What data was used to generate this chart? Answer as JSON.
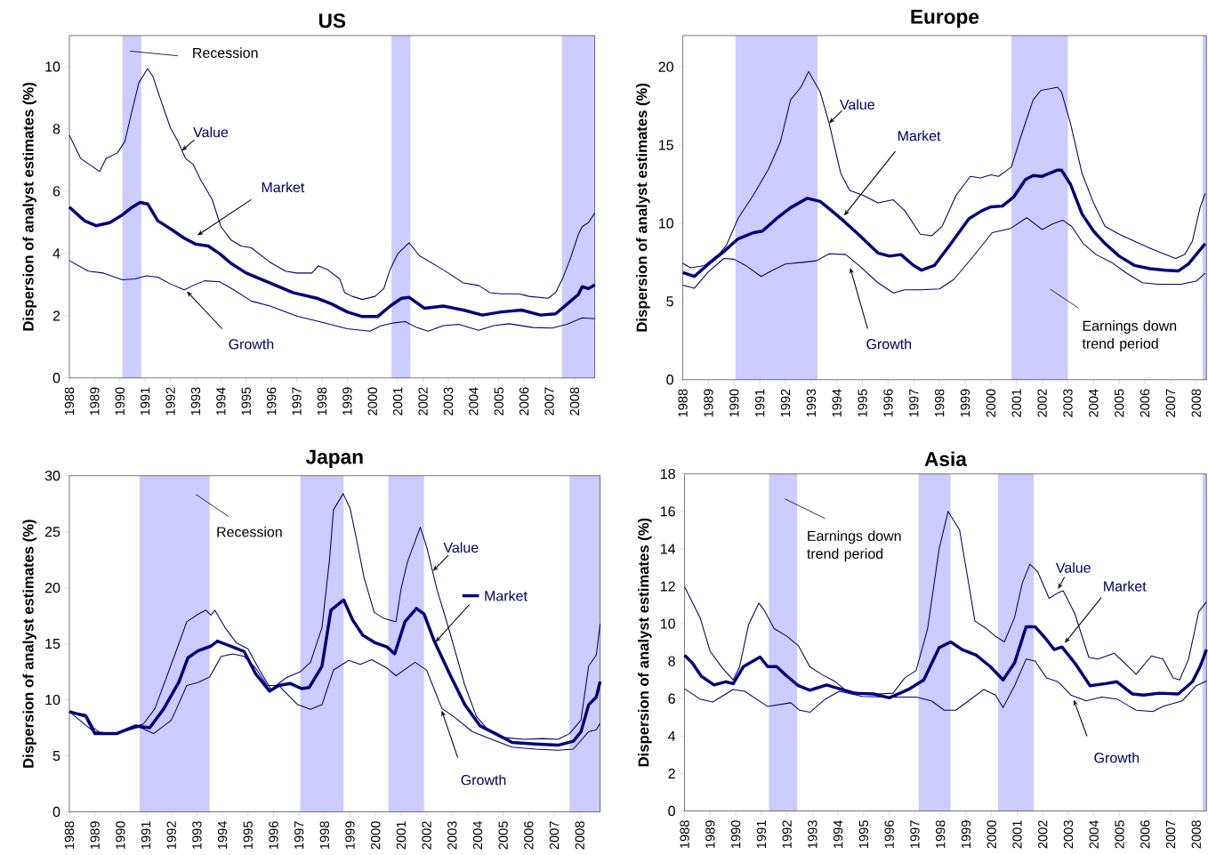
{
  "chart_data": [
    {
      "type": "line",
      "title": "US",
      "ylabel": "Dispersion of analyst estimates (%)",
      "xlim": [
        1988,
        2008.8
      ],
      "ylim": [
        0,
        11
      ],
      "xticks": [
        1988,
        1989,
        1990,
        1991,
        1992,
        1993,
        1994,
        1995,
        1996,
        1997,
        1998,
        1999,
        2000,
        2001,
        2002,
        2003,
        2004,
        2005,
        2006,
        2007,
        2008
      ],
      "yticks": [
        0,
        2,
        4,
        6,
        8,
        10
      ],
      "bands": [
        {
          "axis": "x",
          "from": 1990.1,
          "to": 1990.85,
          "label": "Recession",
          "color": "#ccccff"
        },
        {
          "axis": "x",
          "from": 2000.75,
          "to": 2001.5,
          "color": "#ccccff"
        },
        {
          "axis": "x",
          "from": 2007.5,
          "to": 2008.8,
          "color": "#ccccff"
        }
      ],
      "series": [
        {
          "name": "Value",
          "color": "#000080",
          "x": [
            1988,
            1988.45,
            1989.2,
            1989.45,
            1989.9,
            1990.2,
            1990.45,
            1990.75,
            1991.1,
            1991.3,
            1991.65,
            1992.0,
            1992.3,
            1992.6,
            1992.9,
            1993.2,
            1993.65,
            1994.0,
            1994.4,
            1994.8,
            1995.2,
            1995.9,
            1996.55,
            1997.0,
            1997.6,
            1997.85,
            1998.2,
            1998.7,
            1998.9,
            1999.2,
            1999.6,
            2000.1,
            2000.45,
            2000.7,
            2001.0,
            2001.45,
            2001.85,
            2002.5,
            2003.0,
            2003.6,
            2004.2,
            2004.65,
            2005.1,
            2005.8,
            2006.2,
            2006.95,
            2007.25,
            2007.55,
            2007.85,
            2008.15,
            2008.3,
            2008.55,
            2008.8
          ],
          "values": [
            7.8,
            7.05,
            6.63,
            7.05,
            7.23,
            7.6,
            8.48,
            9.48,
            9.94,
            9.7,
            8.85,
            8.04,
            7.6,
            7.05,
            6.86,
            6.36,
            5.74,
            4.86,
            4.43,
            4.24,
            4.18,
            3.74,
            3.43,
            3.37,
            3.37,
            3.6,
            3.49,
            3.18,
            2.74,
            2.62,
            2.52,
            2.62,
            2.87,
            3.49,
            3.99,
            4.34,
            3.93,
            3.62,
            3.37,
            3.05,
            2.97,
            2.74,
            2.7,
            2.7,
            2.62,
            2.56,
            2.74,
            3.24,
            3.87,
            4.61,
            4.86,
            4.99,
            5.3
          ]
        },
        {
          "name": "Market",
          "color": "#000080",
          "x": [
            1988,
            1988.6,
            1989.05,
            1989.6,
            1990.1,
            1990.5,
            1990.8,
            1991.1,
            1991.5,
            1992.1,
            1992.55,
            1993.0,
            1993.5,
            1993.95,
            1994.4,
            1995.0,
            1995.95,
            1996.85,
            1997.8,
            1998.4,
            1999.0,
            1999.6,
            2000.2,
            2000.7,
            2001.15,
            2001.45,
            2002.05,
            2002.8,
            2003.6,
            2004.35,
            2005.1,
            2005.9,
            2006.65,
            2007.25,
            2007.7,
            2008.15,
            2008.3,
            2008.55,
            2008.8
          ],
          "values": [
            5.49,
            5.05,
            4.89,
            4.99,
            5.24,
            5.49,
            5.64,
            5.59,
            5.05,
            4.74,
            4.49,
            4.3,
            4.24,
            3.99,
            3.68,
            3.37,
            3.05,
            2.74,
            2.56,
            2.37,
            2.12,
            1.97,
            1.97,
            2.31,
            2.56,
            2.59,
            2.24,
            2.31,
            2.18,
            2.02,
            2.12,
            2.18,
            2.02,
            2.06,
            2.37,
            2.68,
            2.93,
            2.87,
            2.99
          ]
        },
        {
          "name": "Growth",
          "color": "#000080",
          "x": [
            1988,
            1988.75,
            1989.35,
            1990.1,
            1990.6,
            1991.05,
            1991.5,
            1992.0,
            1992.55,
            1992.9,
            1993.35,
            1993.95,
            1994.55,
            1995.2,
            1995.95,
            1997.0,
            1997.9,
            1999.0,
            1999.9,
            2000.35,
            2000.85,
            2001.3,
            2001.75,
            2002.2,
            2002.8,
            2003.4,
            2004.2,
            2004.8,
            2005.4,
            2006.35,
            2007.1,
            2007.7,
            2008.3,
            2008.8
          ],
          "values": [
            3.77,
            3.43,
            3.37,
            3.15,
            3.18,
            3.28,
            3.24,
            3.02,
            2.83,
            2.97,
            3.12,
            3.09,
            2.81,
            2.47,
            2.31,
            1.99,
            1.81,
            1.58,
            1.5,
            1.68,
            1.77,
            1.81,
            1.62,
            1.5,
            1.68,
            1.72,
            1.53,
            1.68,
            1.74,
            1.62,
            1.6,
            1.72,
            1.93,
            1.9
          ]
        }
      ]
    },
    {
      "type": "line",
      "title": "Europe",
      "ylabel": "Dispersion of analyst estimates (%)",
      "xlim": [
        1988,
        2008.4
      ],
      "ylim": [
        0,
        22
      ],
      "xticks": [
        1988,
        1989,
        1990,
        1991,
        1992,
        1993,
        1994,
        1995,
        1996,
        1997,
        1998,
        1999,
        2000,
        2001,
        2002,
        2003,
        2004,
        2005,
        2006,
        2007,
        2008
      ],
      "yticks": [
        0,
        5,
        10,
        15,
        20
      ],
      "bands": [
        {
          "axis": "x",
          "from": 1990.05,
          "to": 1993.25,
          "color": "#ccccff"
        },
        {
          "axis": "x",
          "from": 2000.8,
          "to": 2003.0,
          "label": "Earnings down trend period",
          "color": "#ccccff"
        },
        {
          "axis": "x",
          "from": 2008.25,
          "to": 2008.4,
          "color": "#ccccff"
        }
      ],
      "series": [
        {
          "name": "Value",
          "color": "#000080",
          "x": [
            1988,
            1988.3,
            1988.85,
            1989.45,
            1989.7,
            1990.15,
            1990.75,
            1991.35,
            1991.8,
            1992.2,
            1992.6,
            1992.9,
            1993.35,
            1993.7,
            1994.15,
            1994.5,
            1995.0,
            1995.6,
            1996.2,
            1996.65,
            1997.25,
            1997.7,
            1998.1,
            1998.65,
            1999.2,
            1999.6,
            2000.0,
            2000.3,
            2000.8,
            2001.2,
            2001.65,
            2001.95,
            2002.3,
            2002.6,
            2002.75,
            2003.1,
            2003.55,
            2004.0,
            2004.45,
            2005.0,
            2005.6,
            2006.2,
            2006.8,
            2007.2,
            2007.55,
            2007.85,
            2008.15,
            2008.35
          ],
          "values": [
            7.44,
            7.15,
            7.3,
            8.1,
            8.6,
            10.3,
            11.8,
            13.5,
            15.2,
            17.9,
            18.7,
            19.7,
            18.4,
            16.4,
            13.2,
            12.1,
            11.8,
            11.3,
            11.5,
            10.8,
            9.3,
            9.2,
            9.8,
            11.8,
            13.0,
            12.9,
            13.1,
            13.0,
            13.6,
            15.7,
            17.9,
            18.5,
            18.6,
            18.7,
            18.4,
            16.4,
            13.2,
            11.3,
            9.8,
            9.3,
            8.85,
            8.4,
            8.0,
            7.75,
            8.0,
            8.85,
            11.0,
            11.9
          ]
        },
        {
          "name": "Market",
          "color": "#000080",
          "x": [
            1988,
            1988.45,
            1989.0,
            1989.6,
            1990.15,
            1990.75,
            1991.1,
            1991.65,
            1992.2,
            1992.85,
            1993.35,
            1993.8,
            1994.3,
            1994.9,
            1995.6,
            1996.05,
            1996.5,
            1996.95,
            1997.3,
            1997.8,
            1998.4,
            1999.15,
            1999.65,
            2000.0,
            2000.45,
            2000.9,
            2001.35,
            2001.65,
            2002.0,
            2002.6,
            2002.75,
            2003.1,
            2003.55,
            2004.0,
            2004.45,
            2005.0,
            2005.6,
            2006.2,
            2006.8,
            2007.3,
            2007.7,
            2008.05,
            2008.35
          ],
          "values": [
            6.85,
            6.6,
            7.4,
            8.2,
            9.0,
            9.4,
            9.5,
            10.3,
            11.0,
            11.6,
            11.4,
            10.8,
            10.1,
            9.2,
            8.1,
            7.9,
            8.0,
            7.35,
            7.0,
            7.3,
            8.6,
            10.3,
            10.8,
            11.05,
            11.1,
            11.7,
            12.8,
            13.05,
            13.0,
            13.4,
            13.4,
            12.5,
            10.6,
            9.5,
            8.7,
            7.9,
            7.3,
            7.1,
            7.0,
            6.95,
            7.4,
            8.1,
            8.7
          ]
        },
        {
          "name": "Growth",
          "color": "#000080",
          "x": [
            1988,
            1988.45,
            1989.0,
            1989.6,
            1990.0,
            1990.45,
            1991.05,
            1991.5,
            1992.0,
            1992.65,
            1993.2,
            1993.7,
            1994.35,
            1994.9,
            1995.6,
            1996.2,
            1996.65,
            1997.25,
            1998.0,
            1998.55,
            1999.3,
            2000.05,
            2000.75,
            2001.4,
            2002.0,
            2002.4,
            2002.8,
            2003.15,
            2003.6,
            2004.1,
            2004.7,
            2005.3,
            2005.9,
            2006.5,
            2007.4,
            2008.0,
            2008.35
          ],
          "values": [
            6.05,
            5.85,
            6.9,
            7.75,
            7.7,
            7.3,
            6.6,
            7.0,
            7.4,
            7.5,
            7.6,
            8.05,
            8.0,
            7.25,
            6.2,
            5.55,
            5.75,
            5.75,
            5.8,
            6.4,
            7.85,
            9.4,
            9.65,
            10.35,
            9.6,
            9.95,
            10.2,
            9.8,
            8.7,
            8.0,
            7.5,
            6.8,
            6.2,
            6.1,
            6.1,
            6.3,
            6.8
          ]
        }
      ]
    },
    {
      "type": "line",
      "title": "Japan",
      "ylabel": "Dispersion of analyst estimates (%)",
      "xlim": [
        1988,
        2008.8
      ],
      "ylim": [
        0,
        30
      ],
      "xticks": [
        1988,
        1989,
        1990,
        1991,
        1992,
        1993,
        1994,
        1995,
        1996,
        1997,
        1998,
        1999,
        2000,
        2001,
        2002,
        2003,
        2004,
        2005,
        2006,
        2007,
        2008
      ],
      "yticks": [
        0,
        5,
        10,
        15,
        20,
        25,
        30
      ],
      "bands": [
        {
          "axis": "x",
          "from": 1990.75,
          "to": 1993.5,
          "label": "Recession",
          "color": "#ccccff"
        },
        {
          "axis": "x",
          "from": 1997.05,
          "to": 1998.75,
          "color": "#ccccff"
        },
        {
          "axis": "x",
          "from": 2000.5,
          "to": 2001.9,
          "color": "#ccccff"
        },
        {
          "axis": "x",
          "from": 2007.6,
          "to": 2008.8,
          "color": "#ccccff"
        }
      ],
      "series": [
        {
          "name": "Value",
          "color": "#000080",
          "x": [
            1988,
            1988.65,
            1988.95,
            1989.25,
            1989.85,
            1990.45,
            1990.9,
            1991.35,
            1991.8,
            1992.3,
            1992.6,
            1993.05,
            1993.35,
            1993.55,
            1993.7,
            1994.1,
            1994.55,
            1995.0,
            1995.45,
            1995.9,
            1996.5,
            1997.05,
            1997.45,
            1997.9,
            1998.2,
            1998.35,
            1998.73,
            1999.0,
            1999.25,
            1999.55,
            1999.95,
            2000.3,
            2000.8,
            2001.0,
            2001.25,
            2001.75,
            2002.0,
            2002.4,
            2002.9,
            2003.5,
            2003.95,
            2004.4,
            2005.0,
            2005.8,
            2006.55,
            2007.15,
            2007.6,
            2008.05,
            2008.35,
            2008.65,
            2008.8
          ],
          "values": [
            8.94,
            8.7,
            7.5,
            6.98,
            6.98,
            7.5,
            7.84,
            9.2,
            11.97,
            15.07,
            16.96,
            17.65,
            18.0,
            17.55,
            18.0,
            16.45,
            15.07,
            14.55,
            12.66,
            10.94,
            11.97,
            12.5,
            13.35,
            16.45,
            22.6,
            26.95,
            28.4,
            27.1,
            24.36,
            20.9,
            17.8,
            17.3,
            16.96,
            19.9,
            22.3,
            25.4,
            23.67,
            19.9,
            16.1,
            11.28,
            8.53,
            7.33,
            6.64,
            6.47,
            6.54,
            6.47,
            6.98,
            8.19,
            13.0,
            14.0,
            16.8
          ]
        },
        {
          "name": "Market",
          "color": "#000080",
          "x": [
            1988,
            1988.65,
            1989.0,
            1989.85,
            1990.6,
            1991.15,
            1991.7,
            1992.3,
            1992.65,
            1993.05,
            1993.55,
            1993.8,
            1994.4,
            1994.85,
            1995.3,
            1995.85,
            1996.2,
            1996.65,
            1997.1,
            1997.4,
            1997.9,
            1998.25,
            1998.75,
            1999.1,
            1999.5,
            2000.0,
            2000.45,
            2000.75,
            2001.15,
            2001.6,
            2001.9,
            2002.3,
            2002.9,
            2003.5,
            2004.1,
            2004.7,
            2005.35,
            2006.25,
            2007.15,
            2007.75,
            2008.05,
            2008.35,
            2008.65,
            2008.8
          ],
          "values": [
            8.94,
            8.53,
            6.98,
            6.98,
            7.67,
            7.5,
            9.2,
            11.63,
            13.76,
            14.38,
            14.79,
            15.24,
            14.72,
            14.31,
            12.32,
            10.77,
            11.28,
            11.46,
            11.0,
            11.1,
            13.0,
            18.0,
            18.92,
            17.13,
            15.76,
            15.07,
            14.72,
            14.1,
            16.96,
            18.16,
            17.65,
            15.24,
            12.32,
            9.56,
            7.67,
            6.98,
            6.19,
            6.05,
            5.95,
            6.3,
            7.15,
            9.56,
            10.25,
            11.63
          ]
        },
        {
          "name": "Growth",
          "color": "#000080",
          "x": [
            1988,
            1988.95,
            1989.85,
            1990.75,
            1991.3,
            1992.0,
            1992.6,
            1993.05,
            1993.5,
            1993.95,
            1994.4,
            1994.85,
            1995.3,
            1995.75,
            1996.2,
            1996.95,
            1997.45,
            1997.9,
            1998.35,
            1998.95,
            1999.4,
            1999.85,
            2000.45,
            2000.8,
            2001.55,
            2002.0,
            2002.6,
            2003.05,
            2003.8,
            2004.55,
            2005.35,
            2006.25,
            2007.15,
            2007.75,
            2008.35,
            2008.65,
            2008.8
          ],
          "values": [
            8.94,
            7.15,
            6.98,
            7.57,
            6.98,
            8.19,
            11.28,
            11.56,
            12.04,
            13.87,
            14.1,
            13.87,
            12.83,
            11.28,
            11.28,
            9.56,
            9.15,
            9.56,
            12.66,
            13.52,
            13.17,
            13.58,
            12.83,
            12.15,
            13.35,
            12.66,
            9.22,
            8.53,
            7.15,
            6.47,
            5.78,
            5.6,
            5.5,
            5.6,
            7.15,
            7.33,
            7.9
          ]
        }
      ]
    },
    {
      "type": "line",
      "title": "Asia",
      "ylabel": "Dispersion of analyst estimates (%)",
      "xlim": [
        1988,
        2008.4
      ],
      "ylim": [
        0,
        18
      ],
      "xticks": [
        1988,
        1989,
        1990,
        1991,
        1992,
        1993,
        1994,
        1995,
        1996,
        1997,
        1998,
        1999,
        2000,
        2001,
        2002,
        2003,
        2004,
        2005,
        2006,
        2007,
        2008
      ],
      "yticks": [
        0,
        2,
        4,
        6,
        8,
        10,
        12,
        14,
        16,
        18
      ],
      "bands": [
        {
          "axis": "x",
          "from": 1991.3,
          "to": 1992.4,
          "label": "Earnings down trend period",
          "color": "#ccccff"
        },
        {
          "axis": "x",
          "from": 1997.15,
          "to": 1998.4,
          "color": "#ccccff"
        },
        {
          "axis": "x",
          "from": 2000.25,
          "to": 2001.65,
          "color": "#ccccff"
        },
        {
          "axis": "x",
          "from": 2008.25,
          "to": 2008.4,
          "color": "#ccccff"
        }
      ],
      "series": [
        {
          "name": "Value",
          "color": "#000080",
          "x": [
            1988,
            1988.3,
            1988.6,
            1989.0,
            1989.5,
            1989.9,
            1990.15,
            1990.5,
            1990.9,
            1991.1,
            1991.5,
            1992.0,
            1992.45,
            1992.9,
            1993.35,
            1993.9,
            1994.35,
            1994.95,
            1995.55,
            1996.15,
            1996.6,
            1997.05,
            1997.5,
            1997.95,
            1998.3,
            1998.75,
            1999.05,
            1999.35,
            1999.8,
            2000.15,
            2000.5,
            2000.9,
            2001.2,
            2001.5,
            2001.8,
            2002.25,
            2002.6,
            2002.8,
            2003.25,
            2003.8,
            2004.15,
            2004.8,
            2005.2,
            2005.65,
            2006.25,
            2006.7,
            2007.1,
            2007.35,
            2007.7,
            2008.1,
            2008.4
          ],
          "values": [
            11.97,
            11.16,
            10.34,
            8.52,
            7.6,
            7.0,
            7.7,
            9.94,
            11.1,
            10.75,
            9.74,
            9.33,
            8.82,
            7.7,
            7.3,
            6.9,
            6.39,
            6.29,
            6.25,
            6.29,
            7.1,
            7.5,
            9.74,
            14.0,
            16.0,
            15.0,
            12.58,
            10.14,
            9.74,
            9.33,
            9.03,
            10.34,
            12.17,
            13.18,
            12.78,
            11.36,
            11.66,
            11.76,
            10.55,
            8.21,
            8.11,
            8.42,
            7.9,
            7.3,
            8.28,
            8.11,
            7.1,
            7.0,
            8.11,
            10.65,
            11.16
          ]
        },
        {
          "name": "Market",
          "color": "#000080",
          "x": [
            1988,
            1988.3,
            1988.65,
            1989.15,
            1989.6,
            1989.9,
            1990.3,
            1990.95,
            1991.25,
            1991.6,
            1992.0,
            1992.45,
            1992.9,
            1993.55,
            1994.05,
            1994.65,
            1995.4,
            1996.0,
            1996.75,
            1997.35,
            1997.95,
            1998.4,
            1998.85,
            1999.4,
            1999.95,
            2000.45,
            2000.9,
            2001.35,
            2001.7,
            2002.1,
            2002.45,
            2002.75,
            2003.25,
            2003.85,
            2004.45,
            2004.9,
            2005.5,
            2005.95,
            2006.55,
            2007.3,
            2007.85,
            2008.15,
            2008.4
          ],
          "values": [
            8.32,
            7.91,
            7.2,
            6.73,
            6.9,
            6.8,
            7.71,
            8.22,
            7.71,
            7.71,
            7.2,
            6.69,
            6.45,
            6.73,
            6.53,
            6.29,
            6.25,
            6.04,
            6.49,
            7.0,
            8.72,
            9.03,
            8.62,
            8.32,
            7.71,
            7.0,
            7.91,
            9.84,
            9.84,
            9.23,
            8.62,
            8.76,
            7.91,
            6.69,
            6.8,
            6.9,
            6.25,
            6.19,
            6.29,
            6.25,
            6.9,
            7.71,
            8.62
          ]
        },
        {
          "name": "Growth",
          "color": "#000080",
          "x": [
            1988,
            1988.6,
            1989.1,
            1989.9,
            1990.35,
            1991.25,
            1992.15,
            1992.5,
            1992.9,
            1993.5,
            1994.05,
            1994.95,
            1995.85,
            1997.05,
            1997.65,
            1998.15,
            1998.6,
            1999.1,
            1999.7,
            2000.15,
            2000.45,
            2000.9,
            2001.35,
            2001.7,
            2002.15,
            2002.6,
            2003.1,
            2003.7,
            2004.3,
            2004.9,
            2005.65,
            2006.3,
            2006.7,
            2007.45,
            2008.0,
            2008.4
          ],
          "values": [
            6.53,
            5.98,
            5.82,
            6.49,
            6.39,
            5.58,
            5.78,
            5.38,
            5.27,
            5.98,
            6.39,
            6.12,
            6.08,
            6.08,
            5.88,
            5.38,
            5.38,
            5.88,
            6.49,
            6.19,
            5.52,
            6.69,
            8.11,
            8.01,
            7.1,
            6.9,
            6.19,
            5.88,
            6.08,
            5.98,
            5.38,
            5.31,
            5.58,
            5.88,
            6.69,
            6.94
          ]
        }
      ]
    }
  ]
}
